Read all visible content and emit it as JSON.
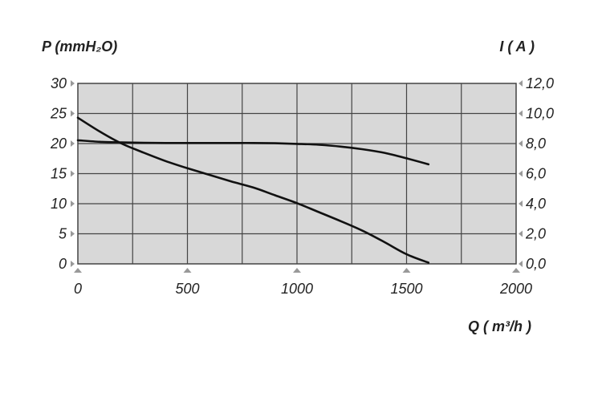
{
  "chart_data": {
    "type": "line",
    "title": "",
    "xlabel": "Q ( m³/h )",
    "ylabel": "P (mmH₂O)",
    "y2label": "I ( A )",
    "xlim": [
      0,
      2000
    ],
    "ylim": [
      0,
      30
    ],
    "y2lim": [
      0,
      12
    ],
    "x_ticks": [
      "0",
      "500",
      "1000",
      "1500",
      "2000"
    ],
    "y_ticks": [
      "0",
      "5",
      "10",
      "15",
      "20",
      "25",
      "30"
    ],
    "y2_ticks": [
      "0,0",
      "2,0",
      "4,0",
      "6,0",
      "8,0",
      "10,0",
      "12,0"
    ],
    "grid": true,
    "plot_bg": "#d8d8d8",
    "grid_color": "#444444",
    "line_color": "#111111",
    "series": [
      {
        "axis": "left",
        "x": [
          0,
          100,
          200,
          300,
          400,
          500,
          600,
          700,
          800,
          900,
          1000,
          1100,
          1200,
          1300,
          1400,
          1500,
          1600
        ],
        "y": [
          24.3,
          22.0,
          20.0,
          18.5,
          17.1,
          15.9,
          14.8,
          13.7,
          12.7,
          11.4,
          10.1,
          8.6,
          7.1,
          5.5,
          3.6,
          1.6,
          0.2
        ]
      },
      {
        "axis": "right",
        "x": [
          0,
          100,
          200,
          300,
          400,
          500,
          600,
          700,
          800,
          900,
          1000,
          1100,
          1200,
          1300,
          1400,
          1500,
          1600
        ],
        "y": [
          8.22,
          8.12,
          8.08,
          8.05,
          8.04,
          8.04,
          8.04,
          8.04,
          8.04,
          8.02,
          7.98,
          7.92,
          7.8,
          7.62,
          7.38,
          7.02,
          6.62
        ]
      }
    ]
  }
}
